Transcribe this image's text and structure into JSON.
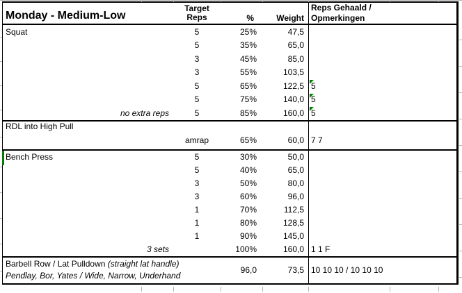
{
  "header": {
    "title": "Monday - Medium-Low",
    "target_reps_line1": "Target",
    "target_reps_line2": "Reps",
    "percent": "%",
    "weight": "Weight",
    "notes_line1": "Reps Gehaald /",
    "notes_line2": "Opmerkingen"
  },
  "colors": {
    "flag_green": "#087a08",
    "gridline_gray": "#b3b3b3"
  },
  "sections": [
    {
      "id": "squat",
      "name": "Squat",
      "rows": [
        {
          "note": "",
          "reps": "5",
          "pct": "25%",
          "weight": "47,5",
          "result": "",
          "flag": false
        },
        {
          "note": "",
          "reps": "5",
          "pct": "35%",
          "weight": "65,0",
          "result": "",
          "flag": false
        },
        {
          "note": "",
          "reps": "3",
          "pct": "45%",
          "weight": "85,0",
          "result": "",
          "flag": false
        },
        {
          "note": "",
          "reps": "3",
          "pct": "55%",
          "weight": "103,5",
          "result": "",
          "flag": false
        },
        {
          "note": "",
          "reps": "5",
          "pct": "65%",
          "weight": "122,5",
          "result": "5",
          "flag": true
        },
        {
          "note": "",
          "reps": "5",
          "pct": "75%",
          "weight": "140,0",
          "result": "5",
          "flag": true
        },
        {
          "note": "no extra reps",
          "reps": "5",
          "pct": "85%",
          "weight": "160,0",
          "result": "5",
          "flag": true
        }
      ]
    },
    {
      "id": "rdl-into-high-pull",
      "name": "RDL into High Pull",
      "name_own_line": true,
      "rows": [
        {
          "note": "",
          "reps": "amrap",
          "pct": "65%",
          "weight": "60,0",
          "result": "7 7",
          "flag": false
        }
      ]
    },
    {
      "id": "bench-press",
      "name": "Bench Press",
      "left_marker": true,
      "rows": [
        {
          "note": "",
          "reps": "5",
          "pct": "30%",
          "weight": "50,0",
          "result": "",
          "flag": false
        },
        {
          "note": "",
          "reps": "5",
          "pct": "40%",
          "weight": "65,0",
          "result": "",
          "flag": false
        },
        {
          "note": "",
          "reps": "3",
          "pct": "50%",
          "weight": "80,0",
          "result": "",
          "flag": false
        },
        {
          "note": "",
          "reps": "3",
          "pct": "60%",
          "weight": "96,0",
          "result": "",
          "flag": false
        },
        {
          "note": "",
          "reps": "1",
          "pct": "70%",
          "weight": "112,5",
          "result": "",
          "flag": false
        },
        {
          "note": "",
          "reps": "1",
          "pct": "80%",
          "weight": "128,5",
          "result": "",
          "flag": false
        },
        {
          "note": "",
          "reps": "1",
          "pct": "90%",
          "weight": "145,0",
          "result": "",
          "flag": false
        },
        {
          "note": "3 sets",
          "reps": "",
          "pct": "100%",
          "weight": "160,0",
          "result": "1 1 F",
          "flag": false
        }
      ]
    },
    {
      "id": "barbell-row-lat-pulldown",
      "name_main": "Barbell Row / Lat Pulldown",
      "name_paren": "(straight lat handle)",
      "name_line2": "Pendlay, Bor, Yates / Wide, Narrow, Underhand",
      "rows": [
        {
          "note": "",
          "reps": "",
          "pct": "96,0",
          "weight": "73,5",
          "result": "10 10 10 / 10 10 10",
          "flag": false
        }
      ]
    }
  ]
}
